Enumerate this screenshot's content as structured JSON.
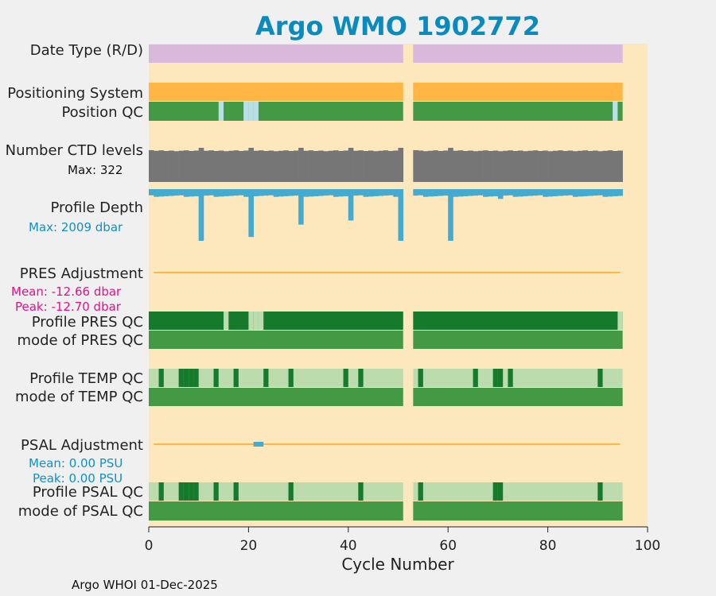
{
  "chart_data": {
    "type": "bar",
    "title": "Argo WMO 1902772",
    "xlabel": "Cycle Number",
    "xlim": [
      0,
      100
    ],
    "xticks": [
      "0",
      "20",
      "40",
      "60",
      "80",
      "100"
    ],
    "footer": "Argo WHOI 01-Dec-2025",
    "row_labels": {
      "date_type": "Date Type (R/D)",
      "positioning_system": "Positioning System",
      "position_qc": "Position QC",
      "ctd_levels": "Number CTD levels",
      "profile_depth": "Profile Depth",
      "pres_adjustment": "PRES Adjustment",
      "profile_pres_qc": "Profile PRES QC",
      "mode_pres_qc": "mode of PRES QC",
      "profile_temp_qc": "Profile TEMP QC",
      "mode_temp_qc": "mode of TEMP QC",
      "psal_adjustment": "PSAL Adjustment",
      "profile_psal_qc": "Profile PSAL QC",
      "mode_psal_qc": "mode of PSAL QC"
    },
    "annotations": {
      "ctd_max": "Max: 322",
      "depth_max": "Max: 2009 dbar",
      "pres_mean": "Mean: -12.66 dbar",
      "pres_peak": "Peak: -12.70 dbar",
      "psal_mean": "Mean: 0.00 PSU",
      "psal_peak": "Peak: 0.00 PSU"
    },
    "cycle_segments": [
      [
        0,
        50
      ],
      [
        53,
        94
      ]
    ],
    "position_qc_light_cycles": [
      14,
      19,
      20,
      21,
      93
    ],
    "ctd_max": 322,
    "ctd_spike_cycles": [
      10,
      20,
      30,
      40,
      50,
      60
    ],
    "depth_max_dbar": 2009,
    "depth_deep_cycles": [
      10,
      20,
      30,
      40,
      50,
      60,
      70
    ],
    "pres_adjustment_mean_dbar": -12.66,
    "pres_adjustment_peak_dbar": -12.7,
    "pres_qc_light_cycles": [
      15,
      20,
      21,
      22,
      94
    ],
    "temp_qc_dark_cycles": [
      2,
      6,
      7,
      8,
      9,
      13,
      17,
      23,
      28,
      39,
      42,
      54,
      65,
      69,
      70,
      72,
      90
    ],
    "psal_adjustment_mean_psu": 0.0,
    "psal_adjustment_peak_psu": 0.0,
    "psal_adjustment_marker_cycle": 21,
    "psal_qc_dark_cycles": [
      2,
      6,
      7,
      8,
      9,
      13,
      17,
      28,
      42,
      54,
      69,
      70,
      90
    ],
    "colors": {
      "background": "#f0f0f0",
      "plot_bg": "#fde7bd",
      "title": "#0b8bbd",
      "date_type": "#d8b8db",
      "positioning": "#ffb644",
      "qc_mid": "#449944",
      "qc_light": "#bcdcae",
      "qc_dark": "#167a2c",
      "pos_qc_light": "#b9dfe7",
      "ctd": "#767676",
      "depth": "#44aad0",
      "adjustment_line": "#ffb644",
      "pink_text": "#e6108a",
      "blue_text": "#1190c4"
    }
  }
}
